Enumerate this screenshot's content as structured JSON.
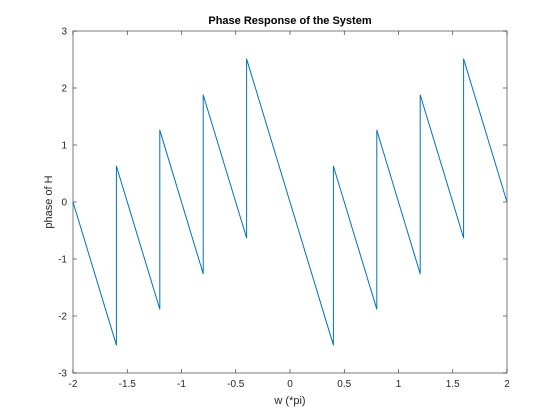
{
  "chart_data": {
    "type": "line",
    "title": "Phase Response of the System",
    "xlabel": "w (*pi)",
    "ylabel": "phase of H",
    "xlim": [
      -2,
      2
    ],
    "ylim": [
      -3,
      3
    ],
    "grid": false,
    "x_ticks": [
      -2,
      -1.5,
      -1,
      -0.5,
      0,
      0.5,
      1,
      1.5,
      2
    ],
    "x_tick_labels": [
      "-2",
      "-1.5",
      "-1",
      "-0.5",
      "0",
      "0.5",
      "1",
      "1.5",
      "2"
    ],
    "y_ticks": [
      -3,
      -2,
      -1,
      0,
      1,
      2,
      3
    ],
    "y_tick_labels": [
      "-3",
      "-2",
      "-1",
      "0",
      "1",
      "2",
      "3"
    ],
    "series": [
      {
        "color": "#0072bd",
        "x": [
          -2.0,
          -1.6,
          -1.6,
          -1.2,
          -1.2,
          -0.8,
          -0.8,
          -0.4,
          -0.4,
          0.4,
          0.4,
          0.8,
          0.8,
          1.2,
          1.2,
          1.6,
          1.6,
          2.0
        ],
        "y": [
          0.0,
          -2.51,
          0.63,
          -1.88,
          1.26,
          -1.26,
          1.88,
          -0.63,
          2.51,
          -2.51,
          0.63,
          -1.88,
          1.26,
          -1.26,
          1.88,
          -0.63,
          2.51,
          0.0
        ]
      }
    ]
  }
}
